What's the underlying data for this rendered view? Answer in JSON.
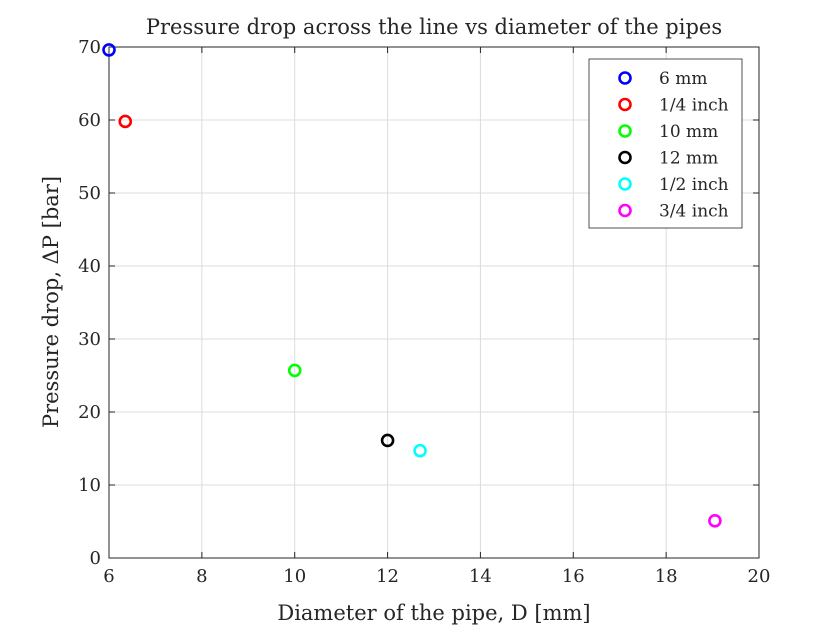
{
  "chart_data": {
    "type": "scatter",
    "title": "Pressure drop across the line vs diameter of the pipes",
    "xlabel": "Diameter of the pipe, D [mm]",
    "ylabel": "Pressure drop, ΔP [bar]",
    "xlim": [
      6,
      20
    ],
    "ylim": [
      0,
      70
    ],
    "xticks": [
      "6",
      "8",
      "10",
      "12",
      "14",
      "16",
      "18",
      "20"
    ],
    "yticks": [
      "0",
      "10",
      "20",
      "30",
      "40",
      "50",
      "60",
      "70"
    ],
    "grid": true,
    "legend_position": "top-right",
    "marker": "open-circle",
    "series": [
      {
        "name": "6 mm",
        "x": 6.0,
        "y": 69.6,
        "color": "#0000ff"
      },
      {
        "name": "1/4 inch",
        "x": 6.35,
        "y": 59.8,
        "color": "#ff0000"
      },
      {
        "name": "10 mm",
        "x": 10.0,
        "y": 25.7,
        "color": "#00ff00"
      },
      {
        "name": "12 mm",
        "x": 12.0,
        "y": 16.1,
        "color": "#000000"
      },
      {
        "name": "1/2 inch",
        "x": 12.7,
        "y": 14.7,
        "color": "#00ffff"
      },
      {
        "name": "3/4 inch",
        "x": 19.05,
        "y": 5.1,
        "color": "#ff00ff"
      }
    ]
  }
}
